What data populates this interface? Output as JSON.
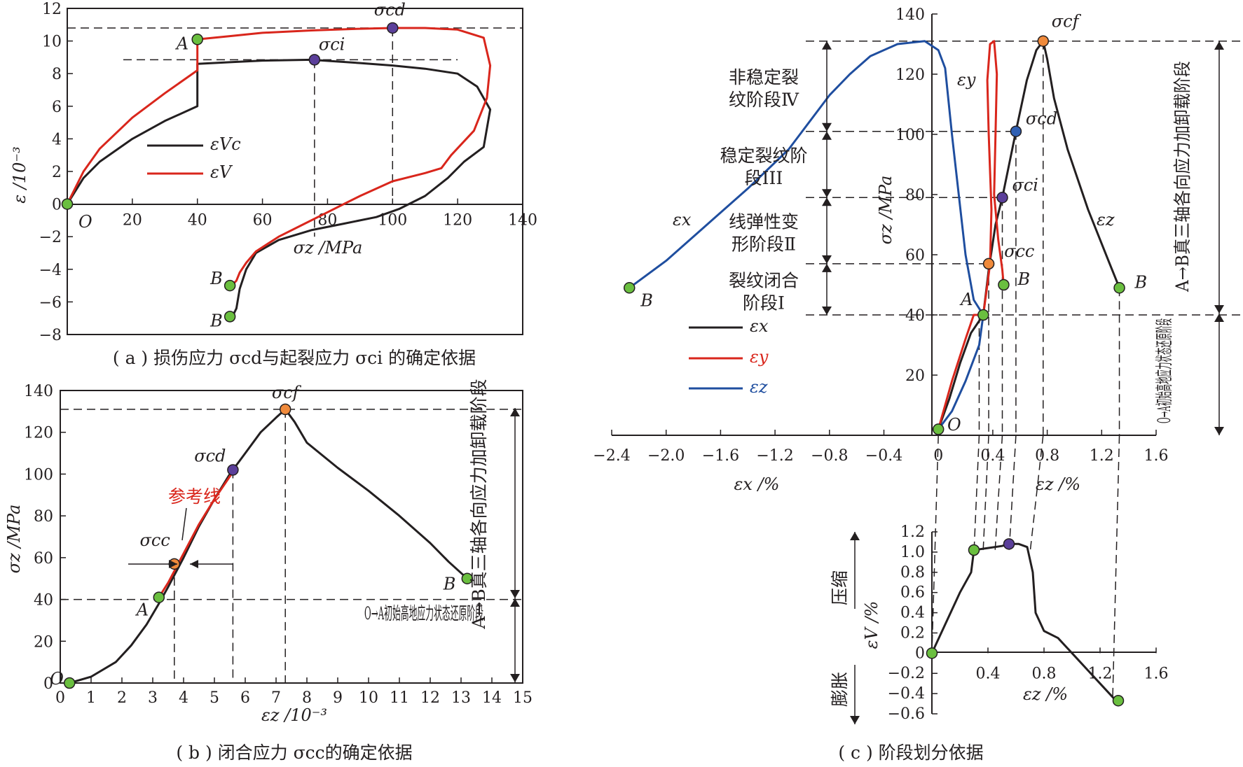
{
  "colors": {
    "black": "#231f20",
    "red": "#d9261c",
    "blue": "#1f4e9f",
    "point_green": "#6abf3f",
    "point_purple": "#5b3f9a",
    "point_orange": "#f08a3b",
    "point_blue": "#2f5fb3",
    "ref_line": "#d9261c"
  },
  "chart_data": [
    {
      "id": "a",
      "type": "line",
      "caption": "( a ) 损伤应力 σcd与起裂应力 σci 的确定依据",
      "xlabel": "σz /MPa",
      "ylabel": "ε /10⁻³",
      "xlim": [
        0,
        140
      ],
      "ylim": [
        -8,
        12
      ],
      "xticks": [
        "0",
        "20",
        "40",
        "60",
        "80",
        "100",
        "120",
        "140"
      ],
      "yticks": [
        "−8",
        "−6",
        "−4",
        "−2",
        "0",
        "2",
        "4",
        "6",
        "8",
        "10",
        "12"
      ],
      "origin_label": "O",
      "legend": {
        "position": "middle-left",
        "entries": [
          "εVc",
          "εV"
        ]
      },
      "series": [
        {
          "name": "εVc",
          "color": "black",
          "points": [
            [
              0,
              0
            ],
            [
              5,
              1.6
            ],
            [
              10,
              2.6
            ],
            [
              20,
              4.0
            ],
            [
              30,
              5.1
            ],
            [
              40,
              6.0
            ],
            [
              40,
              6.6
            ],
            [
              40,
              8.6
            ],
            [
              50,
              8.7
            ],
            [
              60,
              8.8
            ],
            [
              75,
              8.85
            ],
            [
              90,
              8.65
            ],
            [
              100,
              8.5
            ],
            [
              110,
              8.3
            ],
            [
              120,
              8.0
            ],
            [
              126,
              7.2
            ],
            [
              130,
              5.8
            ],
            [
              128,
              3.5
            ],
            [
              122,
              2.6
            ],
            [
              117,
              1.6
            ],
            [
              110,
              0.5
            ],
            [
              102,
              -0.3
            ],
            [
              95,
              -0.8
            ],
            [
              85,
              -1.2
            ],
            [
              75,
              -1.6
            ],
            [
              65,
              -2.2
            ],
            [
              58,
              -3.0
            ],
            [
              55,
              -4.0
            ],
            [
              53,
              -5.2
            ],
            [
              52,
              -6.4
            ],
            [
              51,
              -6.8
            ],
            [
              50,
              -6.9
            ]
          ]
        },
        {
          "name": "εV",
          "color": "red",
          "points": [
            [
              0,
              0
            ],
            [
              5,
              2.0
            ],
            [
              10,
              3.4
            ],
            [
              20,
              5.3
            ],
            [
              30,
              6.8
            ],
            [
              40,
              8.2
            ],
            [
              40,
              10.1
            ],
            [
              50,
              10.3
            ],
            [
              60,
              10.5
            ],
            [
              75,
              10.65
            ],
            [
              90,
              10.75
            ],
            [
              100,
              10.8
            ],
            [
              110,
              10.8
            ],
            [
              120,
              10.7
            ],
            [
              128,
              10.2
            ],
            [
              130,
              8.5
            ],
            [
              129,
              6.5
            ],
            [
              125,
              4.5
            ],
            [
              118,
              3.0
            ],
            [
              115,
              2.2
            ],
            [
              110,
              1.9
            ],
            [
              100,
              1.4
            ],
            [
              90,
              0.5
            ],
            [
              85,
              0.0
            ],
            [
              80,
              -0.5
            ],
            [
              72,
              -1.3
            ],
            [
              65,
              -2.0
            ],
            [
              58,
              -2.9
            ],
            [
              55,
              -3.6
            ],
            [
              53,
              -4.2
            ],
            [
              52,
              -4.7
            ],
            [
              51,
              -4.9
            ],
            [
              50,
              -5.0
            ]
          ]
        }
      ],
      "points": [
        {
          "label": "O",
          "x": 0,
          "y": 0,
          "color": "point_green"
        },
        {
          "label": "A",
          "x": 40,
          "y": 10.1,
          "color": "point_green"
        },
        {
          "label": "σci",
          "x": 76,
          "y": 8.85,
          "color": "point_purple"
        },
        {
          "label": "σcd",
          "x": 100,
          "y": 10.8,
          "color": "point_purple"
        },
        {
          "label": "B",
          "x": 50,
          "y": -5.0,
          "color": "point_green"
        },
        {
          "label": "B",
          "x": 50,
          "y": -6.9,
          "color": "point_green"
        }
      ]
    },
    {
      "id": "b",
      "type": "line",
      "caption": "( b ) 闭合应力 σcc的确定依据",
      "xlabel": "εz /10⁻³",
      "ylabel": "σz /MPa",
      "xlim": [
        0,
        15
      ],
      "ylim": [
        0,
        140
      ],
      "xticks": [
        "0",
        "1",
        "2",
        "3",
        "4",
        "5",
        "6",
        "7",
        "8",
        "9",
        "10",
        "11",
        "12",
        "13",
        "14",
        "15"
      ],
      "yticks": [
        "0",
        "20",
        "40",
        "60",
        "80",
        "100",
        "120",
        "140"
      ],
      "reference_line_label": "参考线",
      "stage_labels": [
        "A→B真三轴各向应力加卸载阶段",
        "O→A初始高地应力状态还原阶段"
      ],
      "series": [
        {
          "name": "",
          "color": "black",
          "points": [
            [
              0.3,
              0
            ],
            [
              1.0,
              3
            ],
            [
              1.8,
              10
            ],
            [
              2.3,
              18
            ],
            [
              2.8,
              28
            ],
            [
              3.2,
              38
            ],
            [
              3.5,
              46
            ],
            [
              4.0,
              60
            ],
            [
              4.5,
              75
            ],
            [
              5.0,
              88
            ],
            [
              5.5,
              100
            ],
            [
              6.0,
              110
            ],
            [
              6.5,
              120
            ],
            [
              7.0,
              127
            ],
            [
              7.3,
              131
            ],
            [
              7.6,
              125
            ],
            [
              8.0,
              115
            ],
            [
              9.0,
              103
            ],
            [
              10.0,
              92
            ],
            [
              11.0,
              80
            ],
            [
              12.0,
              67
            ],
            [
              12.6,
              58
            ],
            [
              13.2,
              50
            ]
          ]
        },
        {
          "name": "",
          "color": "red",
          "points": [
            [
              3.2,
              41
            ],
            [
              3.5,
              48
            ],
            [
              4.0,
              62
            ],
            [
              4.5,
              76
            ],
            [
              5.0,
              88
            ],
            [
              5.6,
              101
            ]
          ]
        }
      ],
      "points": [
        {
          "label": "O",
          "x": 0.3,
          "y": 0,
          "color": "point_green"
        },
        {
          "label": "A",
          "x": 3.2,
          "y": 41,
          "color": "point_green"
        },
        {
          "label": "σcc",
          "x": 3.7,
          "y": 57,
          "color": "point_orange"
        },
        {
          "label": "σcd",
          "x": 5.6,
          "y": 102,
          "color": "point_purple"
        },
        {
          "label": "σcf",
          "x": 7.3,
          "y": 131,
          "color": "point_orange"
        },
        {
          "label": "B",
          "x": 13.2,
          "y": 50,
          "color": "point_green"
        }
      ]
    },
    {
      "id": "c",
      "type": "line",
      "caption": "( c ) 阶段划分依据",
      "xlabel_left": "εx /%",
      "xlabel_right": "εz /%",
      "ylabel": "σz /MPa",
      "xlim": [
        -2.4,
        1.6
      ],
      "ylim": [
        0,
        140
      ],
      "xticks": [
        "−2.4",
        "−2.0",
        "−1.6",
        "−1.2",
        "−0.8",
        "−0.4",
        "0",
        "0.4",
        "0.8",
        "1.2",
        "1.6"
      ],
      "yticks": [
        "20",
        "40",
        "60",
        "80",
        "100",
        "120",
        "140"
      ],
      "origin_label": "O",
      "legend": {
        "position": "lower-left",
        "entries": [
          "εx",
          "εy",
          "εz"
        ]
      },
      "stage_labels": [
        "非稳定裂纹阶段Ⅳ",
        "稳定裂纹阶段III",
        "线弹性变形阶段Ⅱ",
        "裂纹闭合阶段Ⅰ"
      ],
      "right_stage_labels": [
        "A→B真三轴各向应力加卸载阶段",
        "O→A初始高地应力状态还原阶段"
      ],
      "series": [
        {
          "name": "εx",
          "color": "black",
          "points": [
            [
              0,
              2
            ],
            [
              0.08,
              12
            ],
            [
              0.16,
              24
            ],
            [
              0.24,
              34
            ],
            [
              0.33,
              40
            ],
            [
              0.37,
              55
            ],
            [
              0.42,
              70
            ],
            [
              0.47,
              79
            ],
            [
              0.52,
              90
            ],
            [
              0.57,
              101
            ],
            [
              0.65,
              118
            ],
            [
              0.72,
              128
            ],
            [
              0.77,
              131
            ],
            [
              0.8,
              125
            ],
            [
              0.85,
              112
            ],
            [
              0.95,
              95
            ],
            [
              1.1,
              75
            ],
            [
              1.25,
              58
            ],
            [
              1.33,
              49
            ]
          ]
        },
        {
          "name": "εy",
          "color": "red",
          "points": [
            [
              0,
              2
            ],
            [
              0.1,
              18
            ],
            [
              0.2,
              32
            ],
            [
              0.26,
              40
            ],
            [
              0.33,
              40
            ],
            [
              0.36,
              50
            ],
            [
              0.38,
              57
            ],
            [
              0.39,
              75
            ],
            [
              0.37,
              100
            ],
            [
              0.36,
              118
            ],
            [
              0.38,
              130
            ],
            [
              0.41,
              131
            ],
            [
              0.43,
              120
            ],
            [
              0.42,
              100
            ],
            [
              0.41,
              80
            ],
            [
              0.44,
              65
            ],
            [
              0.47,
              55
            ],
            [
              0.48,
              50
            ]
          ]
        },
        {
          "name": "εz",
          "color": "blue",
          "points": [
            [
              -2.27,
              49
            ],
            [
              -2.0,
              58
            ],
            [
              -1.7,
              70
            ],
            [
              -1.4,
              82
            ],
            [
              -1.1,
              95
            ],
            [
              -0.8,
              113
            ],
            [
              -0.65,
              120
            ],
            [
              -0.5,
              126
            ],
            [
              -0.3,
              130
            ],
            [
              -0.1,
              131
            ],
            [
              0.0,
              128
            ],
            [
              0.05,
              122
            ],
            [
              0.1,
              100
            ],
            [
              0.15,
              80
            ],
            [
              0.2,
              60
            ],
            [
              0.26,
              45
            ],
            [
              0.33,
              40
            ],
            [
              0.3,
              30
            ],
            [
              0.2,
              18
            ],
            [
              0.1,
              8
            ],
            [
              0,
              2
            ]
          ]
        }
      ],
      "points": [
        {
          "label": "O",
          "x": 0,
          "y": 2,
          "color": "point_green"
        },
        {
          "label": "A",
          "x": 0.33,
          "y": 40,
          "color": "point_green"
        },
        {
          "label": "σcc",
          "x": 0.37,
          "y": 57,
          "color": "point_orange"
        },
        {
          "label": "σci",
          "x": 0.47,
          "y": 79,
          "color": "point_purple"
        },
        {
          "label": "σcd",
          "x": 0.57,
          "y": 101,
          "color": "point_blue"
        },
        {
          "label": "σcf",
          "x": 0.77,
          "y": 131,
          "color": "point_orange"
        },
        {
          "label": "B",
          "x": -2.27,
          "y": 49,
          "color": "point_green"
        },
        {
          "label": "B",
          "x": 0.48,
          "y": 50,
          "color": "point_green"
        },
        {
          "label": "B",
          "x": 1.33,
          "y": 49,
          "color": "point_green"
        }
      ],
      "curve_labels": [
        "εx",
        "εy",
        "εz"
      ]
    },
    {
      "id": "c-inset",
      "type": "line",
      "xlabel": "εz /%",
      "ylabel": "εV /%",
      "xlim": [
        0,
        1.6
      ],
      "ylim": [
        -0.6,
        1.2
      ],
      "xticks": [
        "0.4",
        "0.8",
        "1.2",
        "1.6"
      ],
      "yticks": [
        "−0.6",
        "−0.4",
        "−0.2",
        "0",
        "0.2",
        "0.4",
        "0.6",
        "0.8",
        "1.0",
        "1.2"
      ],
      "direction_labels": [
        "压缩",
        "膨胀"
      ],
      "series": [
        {
          "name": "",
          "color": "black",
          "points": [
            [
              0,
              0
            ],
            [
              0.1,
              0.3
            ],
            [
              0.2,
              0.6
            ],
            [
              0.28,
              0.8
            ],
            [
              0.3,
              1.02
            ],
            [
              0.4,
              1.04
            ],
            [
              0.5,
              1.06
            ],
            [
              0.55,
              1.08
            ],
            [
              0.62,
              1.08
            ],
            [
              0.68,
              1.05
            ],
            [
              0.72,
              0.8
            ],
            [
              0.74,
              0.4
            ],
            [
              0.8,
              0.22
            ],
            [
              0.9,
              0.15
            ],
            [
              1.0,
              0.0
            ],
            [
              1.1,
              -0.15
            ],
            [
              1.2,
              -0.3
            ],
            [
              1.3,
              -0.45
            ],
            [
              1.33,
              -0.47
            ]
          ]
        }
      ],
      "points": [
        {
          "label": "",
          "x": 0,
          "y": 0,
          "color": "point_green"
        },
        {
          "label": "",
          "x": 0.3,
          "y": 1.02,
          "color": "point_green"
        },
        {
          "label": "",
          "x": 0.55,
          "y": 1.08,
          "color": "point_purple"
        },
        {
          "label": "",
          "x": 1.33,
          "y": -0.47,
          "color": "point_green"
        }
      ]
    }
  ]
}
